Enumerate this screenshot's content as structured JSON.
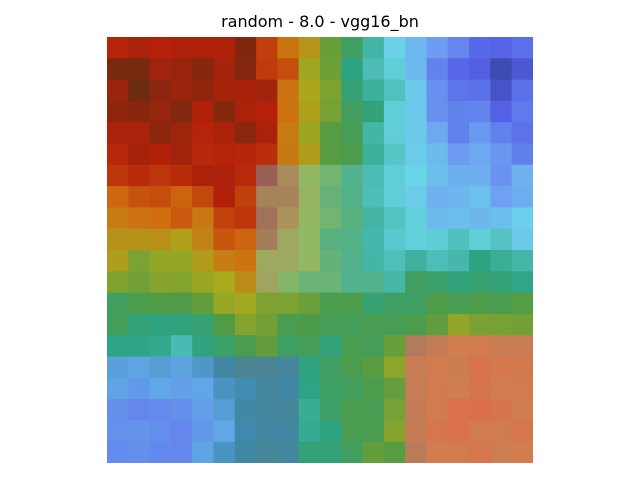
{
  "title": "random - 8.0 - vgg16_bn",
  "image": {
    "kind": "heatmap-overlay",
    "grid": {
      "cols": 20,
      "rows": 20
    },
    "palette": {
      "dark_brown": "#6f2b10",
      "red": "#b5200a",
      "orange": "#d06d10",
      "yellow_green": "#a8a91d",
      "green": "#4f9b46",
      "teal": "#2ea382",
      "cyan": "#6ad6e8",
      "light_blue": "#6fa1f2",
      "blue": "#5460e6",
      "navy": "#20306a",
      "pink": "#e6676a"
    },
    "regions": {
      "top_left": "dark_brown",
      "top_right": "navy",
      "center": "cyan",
      "bottom_left": "blue",
      "bottom_right": "pink"
    }
  }
}
